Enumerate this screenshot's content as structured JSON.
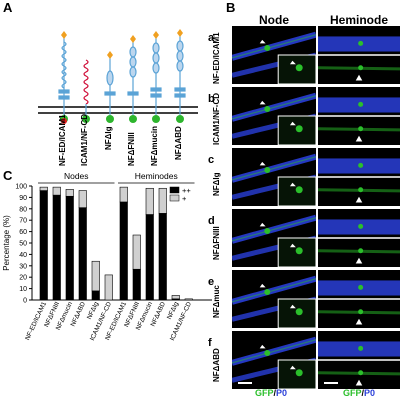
{
  "panels": {
    "a": "A",
    "b": "B",
    "c": "C"
  },
  "panel_a": {
    "constructs": [
      "NF-ED/ICAM1",
      "ICAM1/NF-CD",
      "NFΔIg",
      "NFΔFNIII",
      "NFΔmucin",
      "NFΔABD"
    ]
  },
  "panel_b": {
    "col_headers": [
      "Node",
      "Heminode"
    ],
    "rows": [
      {
        "letter": "a",
        "name": "NF-ED/ICAM1"
      },
      {
        "letter": "b",
        "name": "ICAM1/NF-CD"
      },
      {
        "letter": "c",
        "name": "NFΔIg"
      },
      {
        "letter": "d",
        "name": "NFΔFNIII"
      },
      {
        "letter": "e",
        "name": "NFΔmuc"
      },
      {
        "letter": "f",
        "name": "NFΔABD"
      }
    ],
    "caption_gfp": "GFP",
    "caption_sep": "/",
    "caption_p0": "P0",
    "colors": {
      "gfp": "#2bbf2b",
      "p0": "#2a3fd8"
    }
  },
  "chart_data": {
    "type": "bar",
    "ylabel": "Percentage (%)",
    "ylim": [
      0,
      100
    ],
    "yticks": [
      0,
      10,
      20,
      30,
      40,
      50,
      60,
      70,
      80,
      90,
      100
    ],
    "groups": [
      {
        "name": "Nodes",
        "categories": [
          "NF-ED/ICAM1",
          "NFΔFNIII",
          "NFΔmucin",
          "NFΔABD",
          "NFΔIg",
          "ICAM1/NF-CD"
        ]
      },
      {
        "name": "Heminodes",
        "categories": [
          "NF-ED/ICAM1",
          "NFΔFNIII",
          "NFΔmucin",
          "NFΔABD",
          "NFΔIg",
          "ICAM1/NF-CD"
        ]
      }
    ],
    "series": [
      {
        "name": "++",
        "color": "#000000",
        "values": [
          96,
          92,
          91,
          81,
          8,
          0,
          86,
          27,
          75,
          76,
          1,
          0
        ]
      },
      {
        "name": "+",
        "color": "#d0d0d0",
        "values": [
          3,
          7,
          6,
          15,
          26,
          22,
          13,
          30,
          23,
          22,
          3,
          1
        ]
      }
    ],
    "legend_position": "top-right"
  }
}
